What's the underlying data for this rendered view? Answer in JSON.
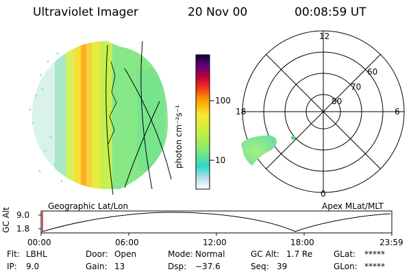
{
  "header": {
    "title": "Ultraviolet Imager",
    "date": "20 Nov 00",
    "time": "00:08:59 UT"
  },
  "colorbar": {
    "ticks": [
      "100",
      "10"
    ],
    "unit_label": "photon cm⁻²s⁻¹"
  },
  "left_panel": {
    "label": "Geographic Lat/Lon"
  },
  "polar_plot": {
    "label": "Apex MLat/MLT",
    "mlt_labels": {
      "top": "12",
      "left": "18",
      "right": "6",
      "bottom": "0"
    },
    "lat_labels": [
      "60",
      "70",
      "80"
    ]
  },
  "altitude_plot": {
    "ylabel": "GC Alt",
    "y_ticks": [
      "9.0",
      "1.8"
    ],
    "x_ticks": [
      "00:00",
      "06:00",
      "12:00",
      "18:00",
      "23:59"
    ]
  },
  "info": {
    "row1": [
      {
        "label": "Flt:",
        "value": "LBHL"
      },
      {
        "label": "Door:",
        "value": "Open"
      },
      {
        "label": "Mode:",
        "value": "Normal"
      },
      {
        "label": "GC Alt:",
        "value": "1.7 Re"
      },
      {
        "label": "GLat:",
        "value": "*****"
      }
    ],
    "row2": [
      {
        "label": "IP:",
        "value": "9.0"
      },
      {
        "label": "Gain:",
        "value": "13"
      },
      {
        "label": "Dsp:",
        "value": "−37.6"
      },
      {
        "label": "Seq:",
        "value": "39"
      },
      {
        "label": "GLon:",
        "value": "*****"
      }
    ]
  }
}
